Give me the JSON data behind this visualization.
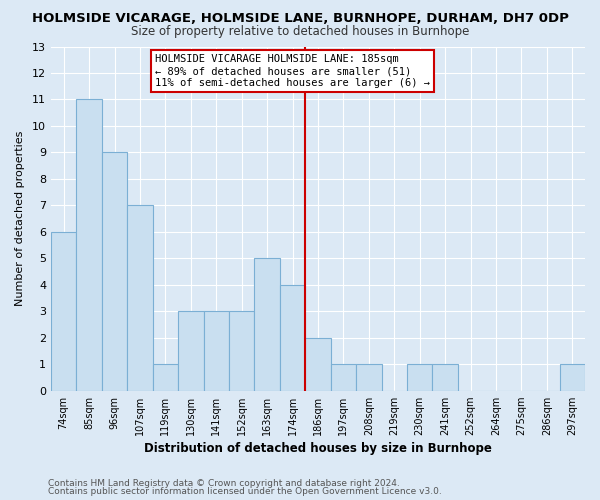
{
  "title": "HOLMSIDE VICARAGE, HOLMSIDE LANE, BURNHOPE, DURHAM, DH7 0DP",
  "subtitle": "Size of property relative to detached houses in Burnhope",
  "xlabel": "Distribution of detached houses by size in Burnhope",
  "ylabel": "Number of detached properties",
  "bin_labels": [
    "74sqm",
    "85sqm",
    "96sqm",
    "107sqm",
    "119sqm",
    "130sqm",
    "141sqm",
    "152sqm",
    "163sqm",
    "174sqm",
    "186sqm",
    "197sqm",
    "208sqm",
    "219sqm",
    "230sqm",
    "241sqm",
    "252sqm",
    "264sqm",
    "275sqm",
    "286sqm",
    "297sqm"
  ],
  "bar_heights": [
    6,
    11,
    9,
    7,
    1,
    3,
    3,
    3,
    5,
    4,
    2,
    1,
    1,
    0,
    1,
    1,
    0,
    0,
    0,
    0,
    1
  ],
  "bar_color": "#c9dff0",
  "bar_edge_color": "#7bafd4",
  "vline_x_index": 10,
  "vline_color": "#cc0000",
  "ylim": [
    0,
    13
  ],
  "yticks": [
    0,
    1,
    2,
    3,
    4,
    5,
    6,
    7,
    8,
    9,
    10,
    11,
    12,
    13
  ],
  "annotation_title": "HOLMSIDE VICARAGE HOLMSIDE LANE: 185sqm",
  "annotation_line1": "← 89% of detached houses are smaller (51)",
  "annotation_line2": "11% of semi-detached houses are larger (6) →",
  "annotation_box_color": "#ffffff",
  "annotation_box_edge": "#cc0000",
  "footer1": "Contains HM Land Registry data © Crown copyright and database right 2024.",
  "footer2": "Contains public sector information licensed under the Open Government Licence v3.0.",
  "background_color": "#dce9f5",
  "plot_bg_color": "#dce9f5",
  "grid_color": "#ffffff",
  "title_color": "#000000",
  "subtitle_color": "#333333"
}
